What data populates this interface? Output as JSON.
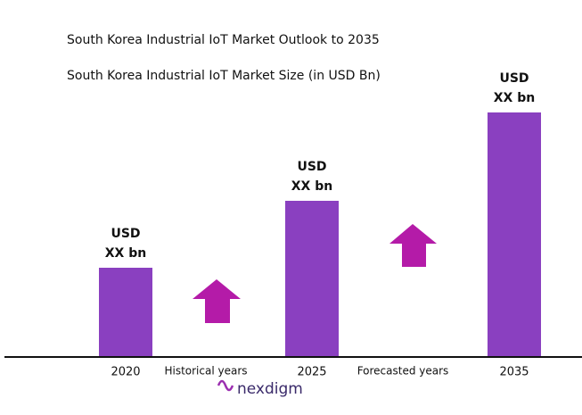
{
  "chart_data": {
    "type": "bar",
    "title": "South Korea Industrial IoT Market Outlook to 2035",
    "subtitle": "South Korea Industrial IoT Market Size (in USD Bn)",
    "categories": [
      "2020",
      "2025",
      "2035"
    ],
    "values": [
      100,
      175,
      274
    ],
    "value_labels": [
      [
        "USD",
        "XX bn"
      ],
      [
        "USD",
        "XX bn"
      ],
      [
        "USD",
        "XX bn"
      ]
    ],
    "color": "#8a40c0",
    "ylim": [
      0,
      300
    ],
    "annotations": [
      "Historical years",
      "Forecasted years"
    ],
    "logo": "nexdigm"
  }
}
